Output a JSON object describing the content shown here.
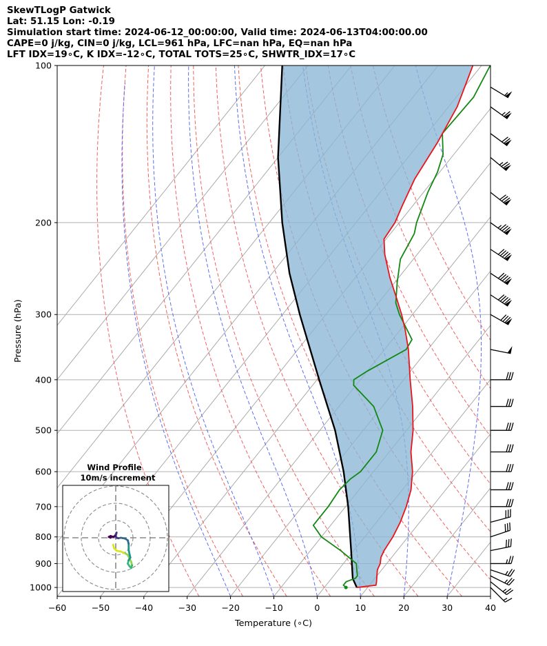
{
  "header": {
    "line1": "SkewTLogP Gatwick",
    "line2": "Lat: 51.15   Lon: -0.19",
    "line3": "Simulation start time: 2024-06-12_00:00:00, Valid time: 2024-06-13T04:00:00.00",
    "line4": "CAPE=0 j/kg, CIN=0 j/kg, LCL=961 hPa, LFC=nan hPa, EQ=nan hPa",
    "line5": "LFT IDX=19∘C, K IDX=-12∘C, TOTAL TOTS=25∘C, SHWTR_IDX=17∘C"
  },
  "chart_data": {
    "type": "skewt",
    "xlabel": "Temperature (∘C)",
    "ylabel": "Pressure (hPa)",
    "xlim": [
      -60,
      40
    ],
    "ylim": [
      1040,
      100
    ],
    "x_ticks": [
      -60,
      -50,
      -40,
      -30,
      -20,
      -10,
      0,
      10,
      20,
      30,
      40
    ],
    "y_ticks": [
      100,
      200,
      300,
      400,
      500,
      600,
      700,
      800,
      900,
      1000
    ],
    "temperature_profile": [
      [
        1000,
        7.5
      ],
      [
        990,
        11.5
      ],
      [
        975,
        11.0
      ],
      [
        950,
        10.0
      ],
      [
        925,
        9.0
      ],
      [
        900,
        8.5
      ],
      [
        875,
        7.5
      ],
      [
        850,
        7.0
      ],
      [
        800,
        6.5
      ],
      [
        750,
        5.5
      ],
      [
        700,
        4.0
      ],
      [
        650,
        2.0
      ],
      [
        600,
        -1.0
      ],
      [
        550,
        -5.0
      ],
      [
        500,
        -8.5
      ],
      [
        450,
        -13.0
      ],
      [
        400,
        -18.5
      ],
      [
        350,
        -24.5
      ],
      [
        320,
        -29.0
      ],
      [
        300,
        -32.5
      ],
      [
        280,
        -36.5
      ],
      [
        255,
        -42.0
      ],
      [
        230,
        -47.5
      ],
      [
        215,
        -50.5
      ],
      [
        200,
        -51.0
      ],
      [
        185,
        -52.5
      ],
      [
        165,
        -54.5
      ],
      [
        140,
        -56.0
      ],
      [
        120,
        -58.0
      ],
      [
        100,
        -62.0
      ]
    ],
    "dewpoint_profile": [
      [
        1000,
        5.0
      ],
      [
        990,
        4.0
      ],
      [
        975,
        4.0
      ],
      [
        960,
        5.5
      ],
      [
        950,
        5.5
      ],
      [
        930,
        4.5
      ],
      [
        900,
        3.0
      ],
      [
        850,
        -3.0
      ],
      [
        800,
        -10.0
      ],
      [
        760,
        -14.0
      ],
      [
        740,
        -14.0
      ],
      [
        700,
        -14.0
      ],
      [
        650,
        -14.5
      ],
      [
        620,
        -14.0
      ],
      [
        600,
        -13.0
      ],
      [
        550,
        -13.0
      ],
      [
        500,
        -15.5
      ],
      [
        450,
        -22.0
      ],
      [
        410,
        -30.5
      ],
      [
        400,
        -31.5
      ],
      [
        385,
        -30.0
      ],
      [
        350,
        -25.0
      ],
      [
        335,
        -25.5
      ],
      [
        300,
        -33.0
      ],
      [
        285,
        -36.0
      ],
      [
        260,
        -39.5
      ],
      [
        235,
        -43.0
      ],
      [
        210,
        -44.5
      ],
      [
        200,
        -46.0
      ],
      [
        175,
        -49.0
      ],
      [
        160,
        -50.5
      ],
      [
        148,
        -52.5
      ],
      [
        135,
        -56.5
      ],
      [
        115,
        -56.0
      ],
      [
        100,
        -58.0
      ]
    ],
    "parcel_profile": [
      [
        1000,
        7.5
      ],
      [
        961,
        4.9
      ],
      [
        850,
        -0.6
      ],
      [
        700,
        -9.4
      ],
      [
        600,
        -16.9
      ],
      [
        500,
        -26.5
      ],
      [
        400,
        -39.5
      ],
      [
        300,
        -56.0
      ],
      [
        250,
        -66.0
      ],
      [
        200,
        -77.0
      ],
      [
        150,
        -90.0
      ],
      [
        100,
        -106.0
      ]
    ],
    "dry_adiabats_C": [
      -30,
      -20,
      -10,
      0,
      10,
      20,
      30,
      40,
      50,
      60,
      70,
      80,
      90
    ],
    "moist_adiabats_C": [
      -20,
      -10,
      0,
      10,
      20,
      30,
      40
    ],
    "isotherms_C": [
      -110,
      -100,
      -90,
      -80,
      -70,
      -60,
      -50,
      -40,
      -30,
      -20,
      -10,
      0,
      10,
      20,
      30,
      40
    ],
    "wind_barbs": [
      {
        "p": 1000,
        "u": -5,
        "v": 5
      },
      {
        "p": 975,
        "u": -10,
        "v": 8
      },
      {
        "p": 950,
        "u": -12,
        "v": 6
      },
      {
        "p": 925,
        "u": -12,
        "v": 4
      },
      {
        "p": 900,
        "u": -14,
        "v": 0
      },
      {
        "p": 850,
        "u": -15,
        "v": -3
      },
      {
        "p": 800,
        "u": -15,
        "v": -5
      },
      {
        "p": 750,
        "u": -15,
        "v": -4
      },
      {
        "p": 700,
        "u": -15,
        "v": 0
      },
      {
        "p": 650,
        "u": -15,
        "v": 0
      },
      {
        "p": 600,
        "u": -15,
        "v": 0
      },
      {
        "p": 550,
        "u": -15,
        "v": 0
      },
      {
        "p": 500,
        "u": -15,
        "v": 0
      },
      {
        "p": 450,
        "u": -15,
        "v": 0
      },
      {
        "p": 400,
        "u": -15,
        "v": 0
      },
      {
        "p": 350,
        "u": -25,
        "v": 5
      },
      {
        "p": 300,
        "u": -35,
        "v": 20
      },
      {
        "p": 275,
        "u": -38,
        "v": 25
      },
      {
        "p": 250,
        "u": -38,
        "v": 25
      },
      {
        "p": 225,
        "u": -38,
        "v": 25
      },
      {
        "p": 200,
        "u": -35,
        "v": 25
      },
      {
        "p": 175,
        "u": -32,
        "v": 25
      },
      {
        "p": 150,
        "u": -30,
        "v": 25
      },
      {
        "p": 135,
        "u": -30,
        "v": 22
      },
      {
        "p": 120,
        "u": -28,
        "v": 20
      },
      {
        "p": 110,
        "u": -25,
        "v": 15
      }
    ],
    "hodograph": {
      "title": "Wind Profile",
      "subtitle": "10m/s increment",
      "ring_step_ms": 10,
      "rings": 3,
      "trace": [
        [
          -1.5,
          -4.0
        ],
        [
          -1.0,
          -6.0
        ],
        [
          0.5,
          -7.5
        ],
        [
          3.0,
          -8.0
        ],
        [
          5.5,
          -9.0
        ],
        [
          7.0,
          -10.0
        ],
        [
          8.0,
          -12.0
        ],
        [
          9.0,
          -14.0
        ],
        [
          9.5,
          -16.0
        ],
        [
          9.0,
          -17.5
        ],
        [
          8.0,
          -16.5
        ],
        [
          7.0,
          -15.0
        ],
        [
          7.5,
          -13.0
        ],
        [
          8.5,
          -11.5
        ],
        [
          8.0,
          -9.5
        ],
        [
          7.5,
          -7.0
        ],
        [
          7.5,
          -3.5
        ],
        [
          7.0,
          -1.5
        ],
        [
          5.5,
          -0.5
        ],
        [
          3.0,
          0.0
        ],
        [
          1.5,
          -0.3
        ],
        [
          0.5,
          0.0
        ],
        [
          0.0,
          1.0
        ],
        [
          0.5,
          3.0
        ],
        [
          -0.5,
          1.0
        ],
        [
          -1.5,
          0.5
        ],
        [
          -3.0,
          1.0
        ],
        [
          -4.0,
          0.5
        ],
        [
          -3.0,
          0.0
        ]
      ]
    }
  }
}
